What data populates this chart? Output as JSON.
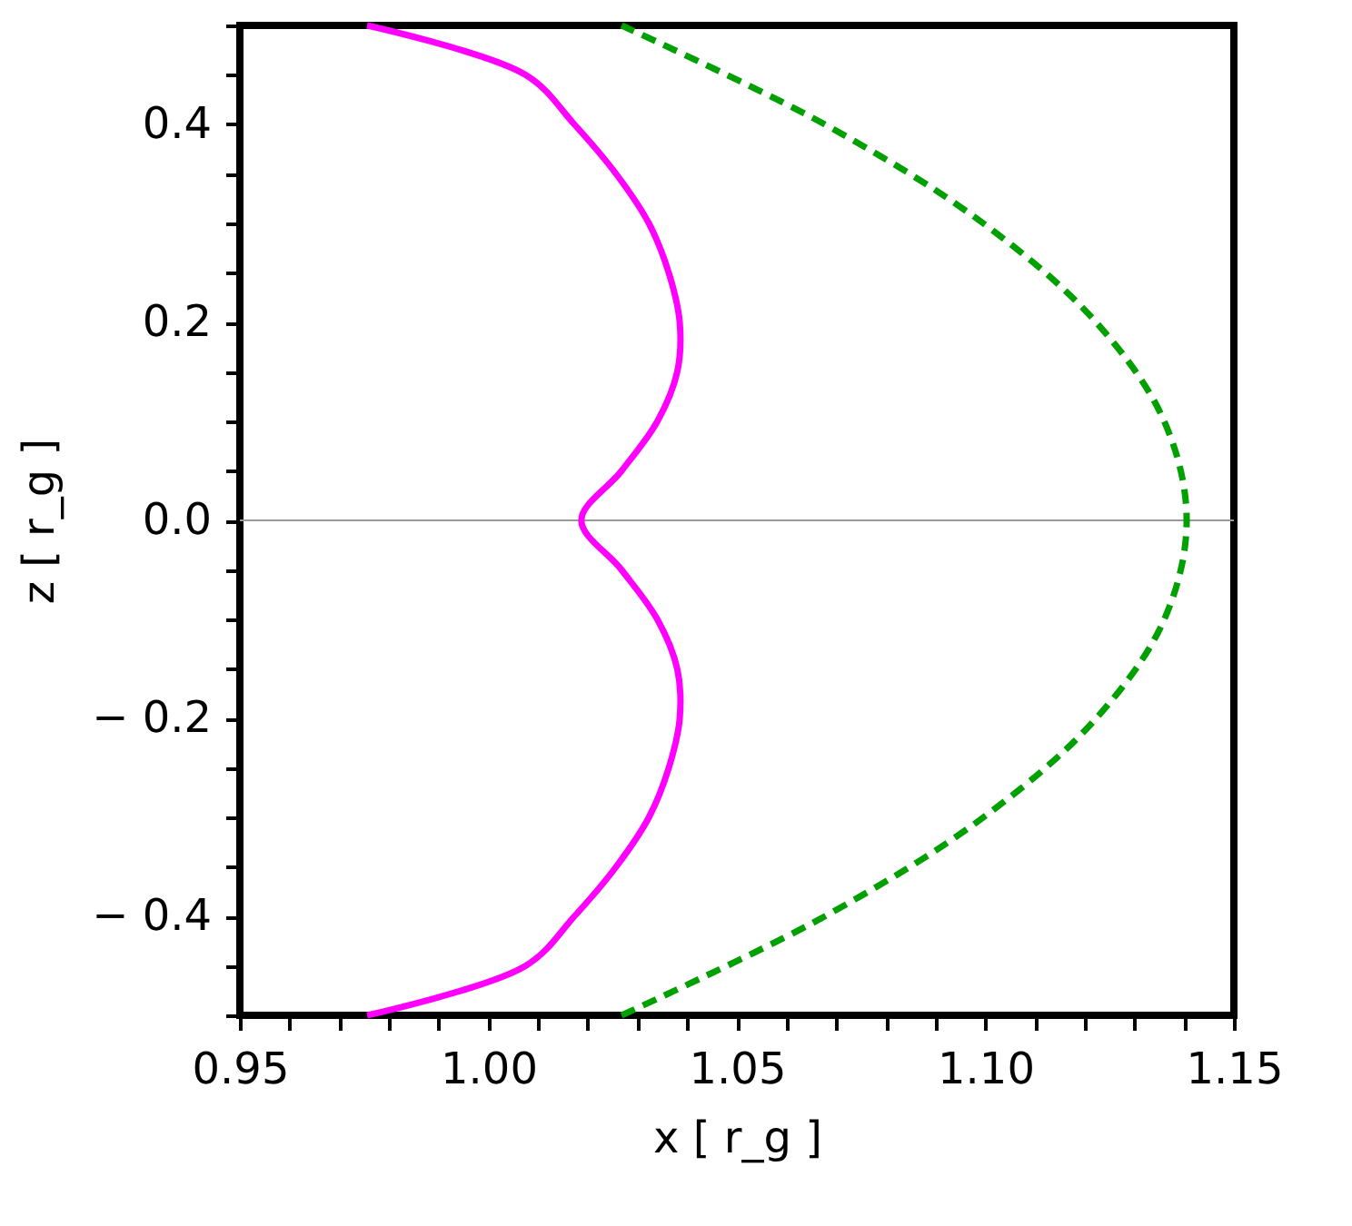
{
  "chart_data": {
    "type": "line",
    "xlabel": "x [ r_g ]",
    "ylabel": "z [ r_g ]",
    "xlim": [
      0.95,
      1.15
    ],
    "ylim": [
      -0.5,
      0.5
    ],
    "xticks": [
      {
        "value": 0.95,
        "label": "0.95"
      },
      {
        "value": 0.96,
        "label": null
      },
      {
        "value": 0.97,
        "label": null
      },
      {
        "value": 0.98,
        "label": null
      },
      {
        "value": 0.99,
        "label": null
      },
      {
        "value": 1.0,
        "label": "1.00"
      },
      {
        "value": 1.01,
        "label": null
      },
      {
        "value": 1.02,
        "label": null
      },
      {
        "value": 1.03,
        "label": null
      },
      {
        "value": 1.04,
        "label": null
      },
      {
        "value": 1.05,
        "label": "1.05"
      },
      {
        "value": 1.06,
        "label": null
      },
      {
        "value": 1.07,
        "label": null
      },
      {
        "value": 1.08,
        "label": null
      },
      {
        "value": 1.09,
        "label": null
      },
      {
        "value": 1.1,
        "label": "1.10"
      },
      {
        "value": 1.11,
        "label": null
      },
      {
        "value": 1.12,
        "label": null
      },
      {
        "value": 1.13,
        "label": null
      },
      {
        "value": 1.14,
        "label": null
      },
      {
        "value": 1.15,
        "label": "1.15"
      }
    ],
    "yticks": [
      {
        "value": -0.5,
        "label": null
      },
      {
        "value": -0.45,
        "label": null
      },
      {
        "value": -0.4,
        "label": "− 0.4"
      },
      {
        "value": -0.35,
        "label": null
      },
      {
        "value": -0.3,
        "label": null
      },
      {
        "value": -0.25,
        "label": null
      },
      {
        "value": -0.2,
        "label": "− 0.2"
      },
      {
        "value": -0.15,
        "label": null
      },
      {
        "value": -0.1,
        "label": null
      },
      {
        "value": -0.05,
        "label": null
      },
      {
        "value": 0.0,
        "label": "0.0"
      },
      {
        "value": 0.05,
        "label": null
      },
      {
        "value": 0.1,
        "label": null
      },
      {
        "value": 0.15,
        "label": null
      },
      {
        "value": 0.2,
        "label": "0.2"
      },
      {
        "value": 0.25,
        "label": null
      },
      {
        "value": 0.3,
        "label": null
      },
      {
        "value": 0.35,
        "label": null
      },
      {
        "value": 0.4,
        "label": "0.4"
      },
      {
        "value": 0.45,
        "label": null
      },
      {
        "value": 0.5,
        "label": null
      }
    ],
    "grid": false,
    "marker": "none",
    "ref_lines": [
      {
        "axis": "y",
        "value": 0,
        "label": null,
        "color": "#999999"
      }
    ],
    "series": [
      {
        "color": "#ff00ff",
        "line_style": "solid",
        "x": [
          0.9756,
          1.0075,
          1.0173,
          1.0257,
          1.0323,
          1.0363,
          1.0385,
          1.038,
          1.034,
          1.0268,
          1.0187,
          1.0268,
          1.034,
          1.038,
          1.0385,
          1.0363,
          1.0323,
          1.0257,
          1.0173,
          1.0075,
          0.9756
        ],
        "values": [
          -0.5,
          -0.45,
          -0.4,
          -0.35,
          -0.3,
          -0.25,
          -0.2,
          -0.15,
          -0.1,
          -0.05,
          0.0,
          0.05,
          0.1,
          0.15,
          0.2,
          0.25,
          0.3,
          0.35,
          0.4,
          0.45,
          0.5
        ]
      },
      {
        "color": "#00a000",
        "line_style": "dashed",
        "x": [
          1.0268,
          1.0677,
          1.0996,
          1.1223,
          1.136,
          1.1405,
          1.136,
          1.1223,
          1.0996,
          1.0677,
          1.0268
        ],
        "values": [
          -0.5,
          -0.4,
          -0.3,
          -0.2,
          -0.1,
          0.0,
          0.1,
          0.2,
          0.3,
          0.4,
          0.5
        ]
      }
    ]
  }
}
